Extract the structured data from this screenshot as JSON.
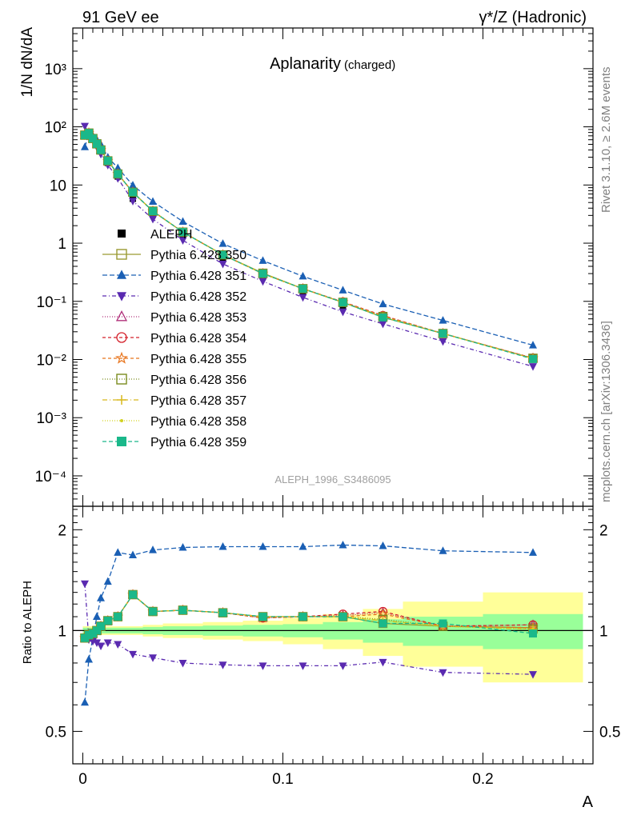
{
  "header": {
    "left": "91 GeV ee",
    "right": "γ*/Z (Hadronic)"
  },
  "side_labels": {
    "rivet": "Rivet 3.1.10, ≥ 2.6M events",
    "mcplots": "mcplots.cern.ch [arXiv:1306.3436]"
  },
  "chart_data": [
    {
      "type": "line",
      "title": "Aplanarity",
      "subtitle": "(charged)",
      "watermark": "ALEPH_1996_S3486095",
      "ylabel": "1/N dN/dA",
      "yscale": "log",
      "ylim": [
        3e-05,
        5000
      ],
      "xlim": [
        -0.005,
        0.255
      ],
      "y_ticks": [
        {
          "v": 1000,
          "label": "10³"
        },
        {
          "v": 100,
          "label": "10²"
        },
        {
          "v": 10,
          "label": "10"
        },
        {
          "v": 1,
          "label": "1"
        },
        {
          "v": 0.1,
          "label": "10⁻¹"
        },
        {
          "v": 0.01,
          "label": "10⁻²"
        },
        {
          "v": 0.001,
          "label": "10⁻³"
        },
        {
          "v": 0.0001,
          "label": "10⁻⁴"
        }
      ],
      "legend_position": "left",
      "x": [
        0.001,
        0.003,
        0.005,
        0.007,
        0.009,
        0.0125,
        0.0175,
        0.025,
        0.035,
        0.05,
        0.07,
        0.09,
        0.11,
        0.13,
        0.15,
        0.18,
        0.225
      ],
      "data": {
        "name": "ALEPH",
        "values": [
          75,
          80,
          65,
          52,
          40,
          24,
          14,
          5.8,
          3.1,
          1.35,
          0.55,
          0.28,
          0.15,
          0.085,
          0.05,
          0.027,
          0.0103
        ]
      },
      "series": [
        {
          "name": "Pythia 6.428 350",
          "color": "#9a9a32",
          "marker": "square-open",
          "dash": "solid",
          "values": [
            72,
            78,
            63,
            51,
            40,
            26,
            15.4,
            7.5,
            3.55,
            1.55,
            0.63,
            0.305,
            0.165,
            0.096,
            0.053,
            0.028,
            0.0105
          ]
        },
        {
          "name": "Pythia 6.428 351",
          "color": "#1a5fb4",
          "marker": "triangle-up",
          "dash": "6,3",
          "values": [
            45,
            76,
            70,
            60,
            50,
            30,
            19.6,
            9.9,
            5.2,
            2.35,
            0.98,
            0.5,
            0.27,
            0.155,
            0.09,
            0.047,
            0.0176
          ]
        },
        {
          "name": "Pythia 6.428 352",
          "color": "#5a2ab0",
          "marker": "triangle-down",
          "dash": "5,3,1,3",
          "values": [
            103,
            75,
            60,
            45,
            34,
            22,
            13.0,
            5.3,
            2.6,
            1.12,
            0.44,
            0.221,
            0.117,
            0.066,
            0.041,
            0.0205,
            0.0076
          ]
        },
        {
          "name": "Pythia 6.428 353",
          "color": "#b0307a",
          "marker": "triangle-open",
          "dash": "1,2",
          "values": [
            72,
            78,
            63,
            51,
            40,
            26,
            15.5,
            7.5,
            3.55,
            1.55,
            0.63,
            0.3,
            0.165,
            0.097,
            0.056,
            0.028,
            0.0106
          ]
        },
        {
          "name": "Pythia 6.428 354",
          "color": "#d4202a",
          "marker": "circle-open",
          "dash": "4,3",
          "values": [
            72,
            78,
            63,
            51,
            40,
            26,
            15.5,
            7.5,
            3.55,
            1.55,
            0.63,
            0.3,
            0.165,
            0.098,
            0.057,
            0.028,
            0.0106
          ]
        },
        {
          "name": "Pythia 6.428 355",
          "color": "#e8741c",
          "marker": "star-open",
          "dash": "4,3",
          "values": [
            72,
            78,
            63,
            51,
            40,
            26,
            15.5,
            7.5,
            3.55,
            1.55,
            0.63,
            0.3,
            0.165,
            0.097,
            0.056,
            0.028,
            0.0105
          ]
        },
        {
          "name": "Pythia 6.428 356",
          "color": "#7a8c1e",
          "marker": "square-open",
          "dash": "1,2",
          "values": [
            72,
            78,
            63,
            51,
            40,
            26,
            15.5,
            7.5,
            3.55,
            1.55,
            0.63,
            0.3,
            0.165,
            0.096,
            0.055,
            0.028,
            0.0105
          ]
        },
        {
          "name": "Pythia 6.428 357",
          "color": "#d8b81c",
          "marker": "plus",
          "dash": "6,3,1,3",
          "values": [
            72,
            78,
            63,
            51,
            40,
            26,
            15.5,
            7.5,
            3.55,
            1.55,
            0.63,
            0.3,
            0.165,
            0.096,
            0.054,
            0.028,
            0.0104
          ]
        },
        {
          "name": "Pythia 6.428 358",
          "color": "#d2d21e",
          "marker": "dot",
          "dash": "1,2",
          "values": [
            72,
            78,
            63,
            51,
            40,
            26,
            15.5,
            7.5,
            3.55,
            1.55,
            0.63,
            0.3,
            0.165,
            0.096,
            0.054,
            0.028,
            0.0104
          ]
        },
        {
          "name": "Pythia 6.428 359",
          "color": "#1ab88a",
          "marker": "square",
          "dash": "5,3",
          "values": [
            72,
            78,
            63,
            51,
            40,
            26,
            15.5,
            7.5,
            3.55,
            1.55,
            0.63,
            0.3,
            0.165,
            0.096,
            0.053,
            0.028,
            0.0102
          ]
        }
      ]
    },
    {
      "type": "line",
      "ylabel": "Ratio to ALEPH",
      "xlabel": "A",
      "yscale": "log",
      "ylim": [
        0.4,
        2.35
      ],
      "xlim": [
        -0.005,
        0.255
      ],
      "y_ticks": [
        {
          "v": 0.5,
          "label": "0.5"
        },
        {
          "v": 1,
          "label": "1"
        },
        {
          "v": 2,
          "label": "2"
        }
      ],
      "x_ticks": [
        {
          "v": 0,
          "label": "0"
        },
        {
          "v": 0.1,
          "label": "0.1"
        },
        {
          "v": 0.2,
          "label": "0.2"
        }
      ],
      "uncertainty_bands": {
        "bin_edges": [
          0,
          0.002,
          0.004,
          0.006,
          0.008,
          0.01,
          0.015,
          0.02,
          0.03,
          0.04,
          0.06,
          0.08,
          0.1,
          0.12,
          0.14,
          0.16,
          0.2,
          0.25
        ],
        "inner": [
          0.02,
          0.02,
          0.02,
          0.02,
          0.02,
          0.02,
          0.02,
          0.02,
          0.025,
          0.03,
          0.035,
          0.04,
          0.045,
          0.06,
          0.08,
          0.1,
          0.12
        ],
        "outer": [
          0.03,
          0.03,
          0.03,
          0.03,
          0.03,
          0.03,
          0.03,
          0.03,
          0.04,
          0.05,
          0.06,
          0.07,
          0.09,
          0.12,
          0.16,
          0.22,
          0.3
        ]
      },
      "x": [
        0.001,
        0.003,
        0.005,
        0.007,
        0.009,
        0.0125,
        0.0175,
        0.025,
        0.035,
        0.05,
        0.07,
        0.09,
        0.11,
        0.13,
        0.15,
        0.18,
        0.225
      ],
      "series": [
        {
          "name": "Pythia 6.428 350",
          "color": "#9a9a32",
          "marker": "square-open",
          "dash": "solid",
          "values": [
            0.95,
            0.97,
            0.98,
            1.0,
            1.03,
            1.07,
            1.1,
            1.28,
            1.14,
            1.15,
            1.13,
            1.1,
            1.1,
            1.1,
            1.05,
            1.03,
            1.02
          ]
        },
        {
          "name": "Pythia 6.428 351",
          "color": "#1a5fb4",
          "marker": "triangle-up",
          "dash": "6,3",
          "values": [
            0.61,
            0.82,
            0.95,
            1.1,
            1.25,
            1.4,
            1.71,
            1.68,
            1.74,
            1.77,
            1.78,
            1.78,
            1.78,
            1.8,
            1.79,
            1.73,
            1.71
          ]
        },
        {
          "name": "Pythia 6.428 352",
          "color": "#5a2ab0",
          "marker": "triangle-down",
          "dash": "5,3,1,3",
          "values": [
            1.38,
            0.94,
            0.93,
            0.92,
            0.9,
            0.92,
            0.91,
            0.85,
            0.83,
            0.8,
            0.79,
            0.785,
            0.785,
            0.785,
            0.805,
            0.75,
            0.74
          ]
        },
        {
          "name": "Pythia 6.428 353",
          "color": "#b0307a",
          "marker": "triangle-open",
          "dash": "1,2",
          "values": [
            0.95,
            0.97,
            0.98,
            1.0,
            1.03,
            1.07,
            1.1,
            1.28,
            1.14,
            1.15,
            1.13,
            1.09,
            1.1,
            1.11,
            1.13,
            1.03,
            1.04
          ]
        },
        {
          "name": "Pythia 6.428 354",
          "color": "#d4202a",
          "marker": "circle-open",
          "dash": "4,3",
          "values": [
            0.95,
            0.97,
            0.98,
            1.0,
            1.03,
            1.07,
            1.1,
            1.28,
            1.14,
            1.15,
            1.13,
            1.09,
            1.1,
            1.12,
            1.14,
            1.03,
            1.04
          ]
        },
        {
          "name": "Pythia 6.428 355",
          "color": "#e8741c",
          "marker": "star-open",
          "dash": "4,3",
          "values": [
            0.95,
            0.97,
            0.98,
            1.0,
            1.03,
            1.07,
            1.1,
            1.28,
            1.14,
            1.15,
            1.13,
            1.09,
            1.1,
            1.1,
            1.12,
            1.03,
            1.02
          ]
        },
        {
          "name": "Pythia 6.428 356",
          "color": "#7a8c1e",
          "marker": "square-open",
          "dash": "1,2",
          "values": [
            0.95,
            0.97,
            0.98,
            1.0,
            1.03,
            1.07,
            1.1,
            1.28,
            1.14,
            1.15,
            1.13,
            1.1,
            1.1,
            1.1,
            1.08,
            1.03,
            1.01
          ]
        },
        {
          "name": "Pythia 6.428 357",
          "color": "#d8b81c",
          "marker": "plus",
          "dash": "6,3,1,3",
          "values": [
            0.95,
            0.97,
            0.98,
            1.0,
            1.03,
            1.07,
            1.1,
            1.28,
            1.14,
            1.15,
            1.13,
            1.1,
            1.1,
            1.1,
            1.07,
            1.03,
            1.01
          ]
        },
        {
          "name": "Pythia 6.428 358",
          "color": "#d2d21e",
          "marker": "dot",
          "dash": "1,2",
          "values": [
            0.95,
            0.97,
            0.98,
            1.0,
            1.03,
            1.07,
            1.1,
            1.28,
            1.14,
            1.15,
            1.13,
            1.1,
            1.1,
            1.1,
            1.07,
            1.03,
            1.01
          ]
        },
        {
          "name": "Pythia 6.428 359",
          "color": "#1ab88a",
          "marker": "square",
          "dash": "5,3",
          "values": [
            0.95,
            0.97,
            0.98,
            1.0,
            1.03,
            1.07,
            1.1,
            1.28,
            1.14,
            1.15,
            1.13,
            1.1,
            1.1,
            1.1,
            1.05,
            1.05,
            0.98
          ]
        }
      ]
    }
  ]
}
